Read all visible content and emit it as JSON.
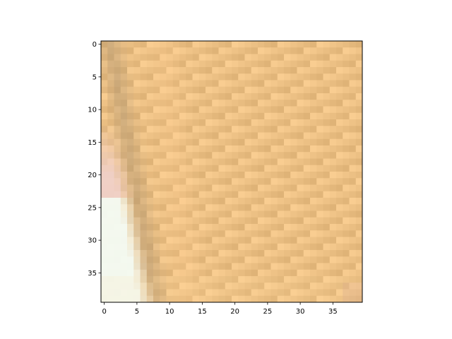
{
  "chart_data": {
    "type": "heatmap",
    "title": "",
    "xlabel": "",
    "ylabel": "",
    "grid": false,
    "x_range": [
      -0.5,
      39.5
    ],
    "y_range": [
      39.5,
      -0.5
    ],
    "x_ticks": [
      0,
      5,
      10,
      15,
      20,
      25,
      30,
      35
    ],
    "y_ticks": [
      0,
      5,
      10,
      15,
      20,
      25,
      30,
      35
    ],
    "x_tick_labels": [
      "0",
      "5",
      "10",
      "15",
      "20",
      "25",
      "30",
      "35"
    ],
    "y_tick_labels": [
      "0",
      "5",
      "10",
      "15",
      "20",
      "25",
      "30",
      "35"
    ],
    "image": {
      "width": 40,
      "height": 40,
      "description": "pixelated photo crop: warm tan/orange background with a darker brown-gray diagonal edge and a white-cyan highlight region in the lower-left",
      "background_color": "#ecc084",
      "edge_color": "#b79a72",
      "highlight_color": "#f4fbf4",
      "pink_tint_color": "#f0d0c8"
    }
  }
}
